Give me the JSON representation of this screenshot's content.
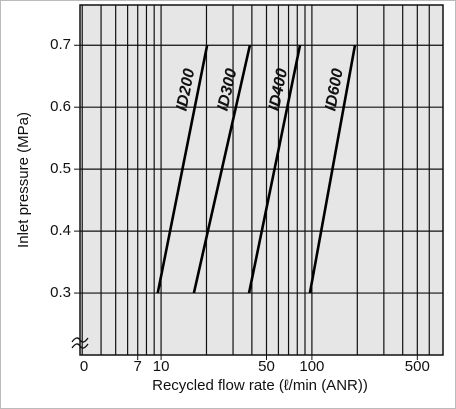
{
  "chart_data": {
    "type": "line",
    "log_x": true,
    "x_axis_label": "Recycled flow rate (ℓ/min (ANR))",
    "y_axis_label": "Inlet pressure (MPa)",
    "x_origin_label": "0",
    "xlim": [
      2.9,
      740
    ],
    "ylim": [
      0.2,
      0.765
    ],
    "xticks": [
      7,
      10,
      50,
      100,
      500
    ],
    "yticks": [
      0.3,
      0.4,
      0.5,
      0.6,
      0.7
    ],
    "xgrid": [
      3,
      4,
      5,
      6,
      7,
      8,
      9,
      10,
      20,
      30,
      40,
      50,
      60,
      70,
      80,
      90,
      100,
      200,
      300,
      400,
      500,
      600
    ],
    "grid": true,
    "background": "#e6e6e6",
    "series": [
      {
        "name": "ID200",
        "color": "#000000",
        "x": [
          9.5,
          20.2
        ],
        "values": [
          0.3,
          0.7
        ]
      },
      {
        "name": "ID300",
        "color": "#000000",
        "x": [
          16.5,
          38.8
        ],
        "values": [
          0.3,
          0.7
        ]
      },
      {
        "name": "ID400",
        "color": "#000000",
        "x": [
          38.3,
          83.4
        ],
        "values": [
          0.3,
          0.7
        ]
      },
      {
        "name": "ID600",
        "color": "#000000",
        "x": [
          97,
          193
        ],
        "values": [
          0.3,
          0.7
        ]
      }
    ]
  }
}
